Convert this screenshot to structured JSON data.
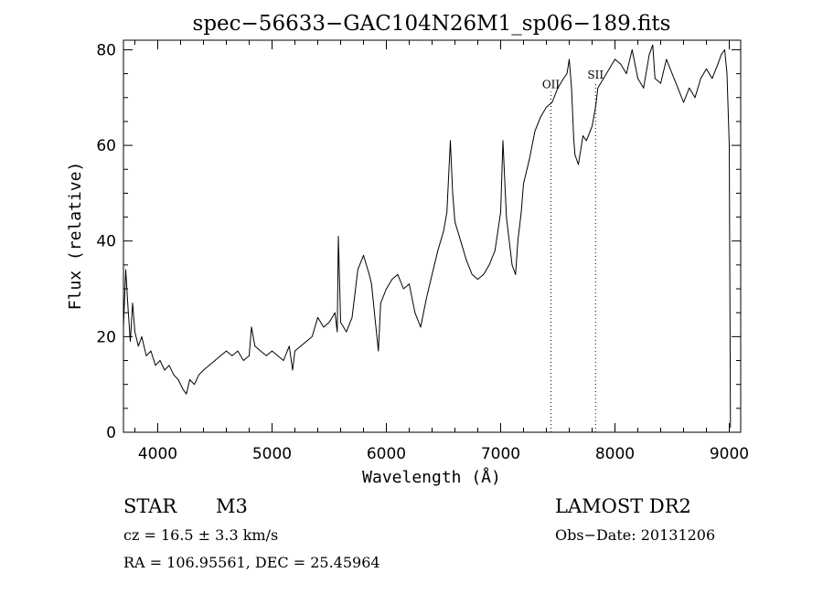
{
  "chart_data": {
    "type": "line",
    "title": "spec−56633−GAC104N26M1_sp06−189.fits",
    "xlabel": "Wavelength (Å)",
    "ylabel": "Flux (relative)",
    "xlim": [
      3700,
      9100
    ],
    "ylim": [
      0,
      82
    ],
    "x_ticks": [
      4000,
      5000,
      6000,
      7000,
      8000,
      9000
    ],
    "y_ticks": [
      0,
      20,
      40,
      60,
      80
    ],
    "grid": false,
    "line_color": "#000000",
    "annotations": [
      {
        "label": "OII",
        "x": 7440,
        "y": 72
      },
      {
        "label": "SII",
        "x": 7830,
        "y": 74
      }
    ],
    "series": [
      {
        "x": [
          3700,
          3720,
          3740,
          3760,
          3780,
          3800,
          3830,
          3860,
          3900,
          3940,
          3980,
          4020,
          4060,
          4100,
          4140,
          4180,
          4220,
          4250,
          4280,
          4320,
          4360,
          4400,
          4450,
          4500,
          4550,
          4600,
          4650,
          4700,
          4750,
          4800,
          4820,
          4850,
          4900,
          4950,
          5000,
          5050,
          5100,
          5150,
          5180,
          5200,
          5250,
          5300,
          5350,
          5400,
          5450,
          5500,
          5550,
          5570,
          5580,
          5600,
          5650,
          5700,
          5750,
          5800,
          5850,
          5870,
          5900,
          5930,
          5950,
          6000,
          6050,
          6100,
          6150,
          6200,
          6250,
          6300,
          6350,
          6400,
          6450,
          6500,
          6530,
          6560,
          6580,
          6600,
          6650,
          6700,
          6750,
          6800,
          6850,
          6900,
          6950,
          7000,
          7020,
          7050,
          7100,
          7130,
          7150,
          7180,
          7200,
          7250,
          7300,
          7350,
          7400,
          7450,
          7500,
          7550,
          7580,
          7600,
          7620,
          7640,
          7650,
          7680,
          7700,
          7720,
          7750,
          7800,
          7830,
          7850,
          7900,
          7950,
          8000,
          8050,
          8100,
          8150,
          8200,
          8250,
          8300,
          8330,
          8350,
          8400,
          8450,
          8500,
          8550,
          8600,
          8650,
          8700,
          8750,
          8800,
          8850,
          8900,
          8930,
          8960,
          8980,
          9000,
          9010
        ],
        "y": [
          22,
          34,
          26,
          19,
          27,
          21,
          18,
          20,
          16,
          17,
          14,
          15,
          13,
          14,
          12,
          11,
          9,
          8,
          11,
          10,
          12,
          13,
          14,
          15,
          16,
          17,
          16,
          17,
          15,
          16,
          22,
          18,
          17,
          16,
          17,
          16,
          15,
          18,
          13,
          17,
          18,
          19,
          20,
          24,
          22,
          23,
          25,
          21,
          41,
          23,
          21,
          24,
          34,
          37,
          33,
          31,
          24,
          17,
          27,
          30,
          32,
          33,
          30,
          31,
          25,
          22,
          28,
          33,
          38,
          42,
          46,
          61,
          50,
          44,
          40,
          36,
          33,
          32,
          33,
          35,
          38,
          46,
          61,
          45,
          35,
          33,
          40,
          46,
          52,
          57,
          63,
          66,
          68,
          69,
          72,
          74,
          75,
          78,
          72,
          61,
          58,
          56,
          59,
          62,
          61,
          64,
          68,
          72,
          74,
          76,
          78,
          77,
          75,
          80,
          74,
          72,
          79,
          81,
          74,
          73,
          78,
          75,
          72,
          69,
          72,
          70,
          74,
          76,
          74,
          77,
          79,
          80,
          75,
          60,
          1
        ]
      }
    ]
  },
  "info": {
    "object_class": "STAR",
    "subclass": "M3",
    "survey": "LAMOST DR2",
    "cz": "cz = 16.5 ± 3.3 km/s",
    "obs_date": "Obs−Date: 20131206",
    "coords": "RA = 106.95561, DEC =  25.45964"
  }
}
